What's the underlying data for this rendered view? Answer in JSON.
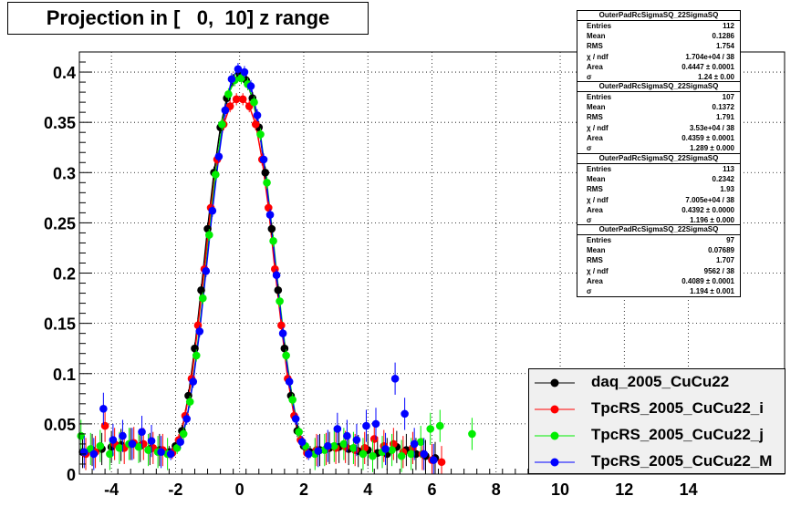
{
  "chart_data": {
    "type": "scatter",
    "title": "Projection in [   0,  10] z range",
    "xlabel": "",
    "ylabel": "",
    "xlim": [
      -5,
      17
    ],
    "ylim": [
      0,
      0.42
    ],
    "x_ticks": [
      -4,
      -2,
      0,
      2,
      4,
      6,
      8,
      10,
      12,
      14
    ],
    "x_tick_labels": [
      "-4",
      "-2",
      "0",
      "2",
      "4",
      "6",
      "8",
      "10",
      "12",
      "14"
    ],
    "y_ticks": [
      0,
      0.05,
      0.1,
      0.15,
      0.2,
      0.25,
      0.3,
      0.35,
      0.4
    ],
    "y_tick_labels": [
      "0",
      "0.05",
      "0.1",
      "0.15",
      "0.2",
      "0.25",
      "0.3",
      "0.35",
      "0.4"
    ],
    "grid": true,
    "legend_position": "bottom-right",
    "series": [
      {
        "name": "daq_2005_CuCu22",
        "color": "#000000",
        "x": [
          -4.9,
          -4.6,
          -4.3,
          -4.0,
          -3.7,
          -3.4,
          -3.1,
          -2.8,
          -2.5,
          -2.2,
          -2.0,
          -1.8,
          -1.6,
          -1.4,
          -1.2,
          -1.0,
          -0.8,
          -0.6,
          -0.4,
          -0.2,
          0.0,
          0.2,
          0.4,
          0.6,
          0.8,
          1.0,
          1.2,
          1.4,
          1.6,
          1.8,
          2.0,
          2.2,
          2.5,
          2.8,
          3.1,
          3.4,
          3.7,
          4.0,
          4.3,
          4.6,
          4.9,
          5.2,
          5.5,
          5.8,
          6.1
        ],
        "y": [
          0.022,
          0.024,
          0.025,
          0.027,
          0.029,
          0.03,
          0.028,
          0.025,
          0.024,
          0.022,
          0.028,
          0.043,
          0.078,
          0.125,
          0.183,
          0.244,
          0.3,
          0.345,
          0.374,
          0.392,
          0.398,
          0.392,
          0.374,
          0.345,
          0.3,
          0.244,
          0.183,
          0.125,
          0.078,
          0.043,
          0.028,
          0.022,
          0.024,
          0.026,
          0.027,
          0.025,
          0.023,
          0.024,
          0.021,
          0.02,
          0.027,
          0.024,
          0.02,
          0.018,
          0.016
        ]
      },
      {
        "name": "TpcRS_2005_CuCu22_i",
        "color": "#ff0000",
        "x": [
          -4.8,
          -4.5,
          -4.2,
          -3.9,
          -3.6,
          -3.3,
          -3.0,
          -2.7,
          -2.4,
          -2.1,
          -1.9,
          -1.7,
          -1.5,
          -1.3,
          -1.1,
          -0.9,
          -0.7,
          -0.5,
          -0.3,
          -0.1,
          0.1,
          0.3,
          0.5,
          0.7,
          0.9,
          1.1,
          1.3,
          1.5,
          1.7,
          1.9,
          2.1,
          2.4,
          2.7,
          3.0,
          3.3,
          3.6,
          3.9,
          4.2,
          4.5,
          4.8,
          5.1,
          5.4,
          5.7,
          6.0,
          6.3
        ],
        "y": [
          0.02,
          0.022,
          0.048,
          0.03,
          0.026,
          0.031,
          0.03,
          0.026,
          0.024,
          0.021,
          0.034,
          0.058,
          0.095,
          0.148,
          0.204,
          0.265,
          0.313,
          0.348,
          0.366,
          0.373,
          0.373,
          0.366,
          0.348,
          0.313,
          0.265,
          0.204,
          0.148,
          0.095,
          0.058,
          0.034,
          0.021,
          0.024,
          0.025,
          0.026,
          0.027,
          0.024,
          0.026,
          0.035,
          0.028,
          0.03,
          0.022,
          0.026,
          0.02,
          0.014,
          0.012
        ]
      },
      {
        "name": "TpcRS_2005_CuCu22_j",
        "color": "#00ee00",
        "x": [
          -4.95,
          -4.65,
          -4.35,
          -4.05,
          -3.75,
          -3.45,
          -3.15,
          -2.85,
          -2.55,
          -2.25,
          -1.95,
          -1.75,
          -1.55,
          -1.35,
          -1.15,
          -0.95,
          -0.75,
          -0.55,
          -0.35,
          -0.15,
          0.05,
          0.25,
          0.45,
          0.65,
          0.85,
          1.05,
          1.25,
          1.45,
          1.65,
          1.85,
          2.05,
          2.35,
          2.65,
          2.95,
          3.25,
          3.55,
          3.85,
          4.15,
          4.45,
          4.75,
          5.05,
          5.35,
          5.65,
          5.95,
          6.25,
          7.25
        ],
        "y": [
          0.038,
          0.025,
          0.028,
          0.02,
          0.026,
          0.03,
          0.027,
          0.024,
          0.022,
          0.02,
          0.026,
          0.04,
          0.072,
          0.118,
          0.175,
          0.238,
          0.298,
          0.348,
          0.378,
          0.392,
          0.394,
          0.388,
          0.37,
          0.338,
          0.29,
          0.232,
          0.172,
          0.118,
          0.074,
          0.042,
          0.028,
          0.02,
          0.024,
          0.028,
          0.03,
          0.026,
          0.02,
          0.018,
          0.022,
          0.024,
          0.018,
          0.02,
          0.032,
          0.045,
          0.048,
          0.04
        ]
      },
      {
        "name": "TpcRS_2005_CuCu22_M",
        "color": "#0000ff",
        "x": [
          -4.85,
          -4.55,
          -4.25,
          -3.95,
          -3.65,
          -3.35,
          -3.05,
          -2.75,
          -2.45,
          -2.15,
          -1.85,
          -1.65,
          -1.45,
          -1.25,
          -1.05,
          -0.85,
          -0.65,
          -0.45,
          -0.25,
          -0.05,
          0.15,
          0.35,
          0.55,
          0.75,
          0.95,
          1.15,
          1.35,
          1.55,
          1.75,
          1.95,
          2.15,
          2.45,
          2.75,
          3.05,
          3.35,
          3.65,
          3.95,
          4.25,
          4.55,
          4.85,
          5.15,
          5.45,
          5.75,
          6.05
        ],
        "y": [
          0.022,
          0.02,
          0.065,
          0.034,
          0.038,
          0.03,
          0.042,
          0.033,
          0.022,
          0.02,
          0.032,
          0.055,
          0.092,
          0.142,
          0.202,
          0.262,
          0.316,
          0.362,
          0.393,
          0.403,
          0.4,
          0.386,
          0.357,
          0.313,
          0.258,
          0.198,
          0.14,
          0.092,
          0.055,
          0.032,
          0.02,
          0.023,
          0.028,
          0.045,
          0.038,
          0.034,
          0.048,
          0.05,
          0.025,
          0.095,
          0.06,
          0.03,
          0.02,
          0.014
        ]
      }
    ]
  },
  "stats_boxes": [
    {
      "header": "OuterPadRcSigmaSQ_22SigmaSQ",
      "rows": [
        {
          "label": "Entries",
          "value": "112"
        },
        {
          "label": "Mean",
          "value": "0.1286"
        },
        {
          "label": "RMS",
          "value": "1.754"
        },
        {
          "label": "χ  / ndf",
          "value": "1.704e+04 / 38"
        },
        {
          "label": "Area",
          "value": "0.4447 ± 0.0001"
        },
        {
          "label": "σ",
          "value": "1.24 ± 0.00"
        }
      ]
    },
    {
      "header": "OuterPadRcSigmaSQ_22SigmaSQ",
      "rows": [
        {
          "label": "Entries",
          "value": "107"
        },
        {
          "label": "Mean",
          "value": "0.1372"
        },
        {
          "label": "RMS",
          "value": "1.791"
        },
        {
          "label": "χ  / ndf",
          "value": "3.53e+04 / 38"
        },
        {
          "label": "Area",
          "value": "0.4359 ± 0.0001"
        },
        {
          "label": "σ",
          "value": "1.289 ± 0.000"
        }
      ]
    },
    {
      "header": "OuterPadRcSigmaSQ_22SigmaSQ",
      "rows": [
        {
          "label": "Entries",
          "value": "113"
        },
        {
          "label": "Mean",
          "value": "0.2342"
        },
        {
          "label": "RMS",
          "value": "1.93"
        },
        {
          "label": "χ  / ndf",
          "value": "7.005e+04 / 38"
        },
        {
          "label": "Area",
          "value": "0.4392 ± 0.0000"
        },
        {
          "label": "σ",
          "value": "1.196 ± 0.000"
        }
      ]
    },
    {
      "header": "OuterPadRcSigmaSQ_22SigmaSQ",
      "rows": [
        {
          "label": "Entries",
          "value": "97"
        },
        {
          "label": "Mean",
          "value": "0.07689"
        },
        {
          "label": "RMS",
          "value": "1.707"
        },
        {
          "label": "χ  / ndf",
          "value": "9562 / 38"
        },
        {
          "label": "Area",
          "value": "0.4089 ± 0.0001"
        },
        {
          "label": "σ",
          "value": "1.194 ± 0.001"
        }
      ]
    }
  ],
  "legend": [
    {
      "label": "daq_2005_CuCu22",
      "color": "#000000"
    },
    {
      "label": "TpcRS_2005_CuCu22_i",
      "color": "#ff0000"
    },
    {
      "label": "TpcRS_2005_CuCu22_j",
      "color": "#00ee00"
    },
    {
      "label": "TpcRS_2005_CuCu22_M",
      "color": "#0000ff"
    }
  ]
}
